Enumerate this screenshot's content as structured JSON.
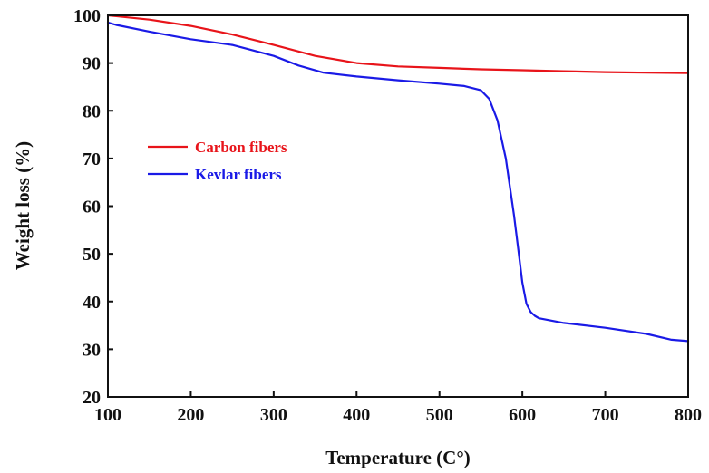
{
  "chart_data": {
    "type": "line",
    "xlabel": "Temperature (C°)",
    "ylabel": "Weight loss (%)",
    "xlim": [
      100,
      800
    ],
    "ylim": [
      20,
      100
    ],
    "x_ticks": [
      "100",
      "200",
      "300",
      "400",
      "500",
      "600",
      "700",
      "800"
    ],
    "y_ticks": [
      "20",
      "30",
      "40",
      "50",
      "60",
      "70",
      "80",
      "90",
      "100"
    ],
    "grid": false,
    "legend_position": "center-left",
    "series": [
      {
        "name": "Carbon fibers",
        "color": "#e8141a",
        "x": [
          100,
          150,
          200,
          250,
          300,
          350,
          400,
          450,
          500,
          550,
          600,
          650,
          700,
          750,
          800
        ],
        "y": [
          100,
          99.1,
          97.8,
          96.0,
          93.8,
          91.5,
          90.0,
          89.3,
          89.0,
          88.7,
          88.5,
          88.3,
          88.1,
          88.0,
          87.9
        ]
      },
      {
        "name": "Kevlar fibers",
        "color": "#1a1ae6",
        "x": [
          100,
          110,
          150,
          200,
          250,
          300,
          330,
          360,
          400,
          450,
          500,
          530,
          550,
          560,
          570,
          580,
          590,
          595,
          600,
          605,
          610,
          615,
          620,
          650,
          700,
          750,
          780,
          800
        ],
        "y": [
          98.5,
          98.0,
          96.6,
          95.0,
          93.8,
          91.5,
          89.5,
          88.0,
          87.2,
          86.4,
          85.7,
          85.2,
          84.3,
          82.5,
          78.0,
          70.0,
          58.0,
          51.0,
          44.0,
          39.5,
          37.8,
          37.0,
          36.5,
          35.5,
          34.5,
          33.2,
          32.0,
          31.7
        ]
      }
    ]
  }
}
